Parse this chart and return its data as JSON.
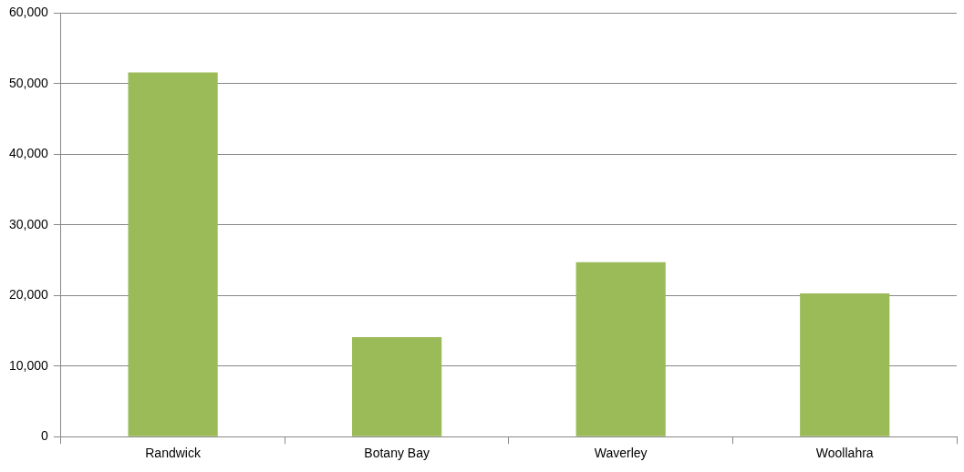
{
  "chart_data": {
    "type": "bar",
    "categories": [
      "Randwick",
      "Botany Bay",
      "Waverley",
      "Woollahra"
    ],
    "values": [
      51600,
      14100,
      24700,
      20300
    ],
    "color": "#9bbb59",
    "ylim": [
      0,
      60000
    ],
    "yticks": [
      {
        "value": 0,
        "label": "0"
      },
      {
        "value": 10000,
        "label": "10,000"
      },
      {
        "value": 20000,
        "label": "20,000"
      },
      {
        "value": 30000,
        "label": "30,000"
      },
      {
        "value": 40000,
        "label": "40,000"
      },
      {
        "value": 50000,
        "label": "50,000"
      },
      {
        "value": 60000,
        "label": "60,000"
      }
    ],
    "grid": "y",
    "legend": false
  }
}
